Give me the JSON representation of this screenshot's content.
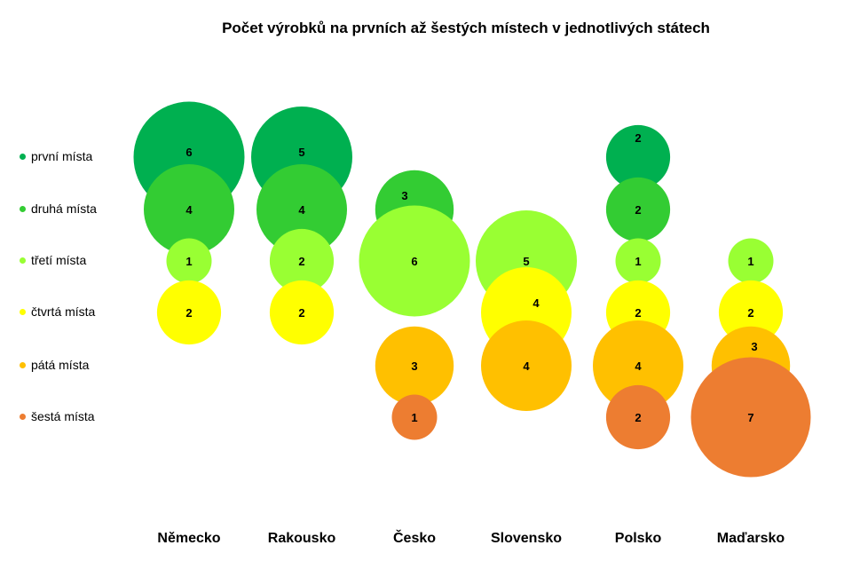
{
  "chart_data": {
    "type": "bubble",
    "title": "Počet výrobků na prvních až šestých místech v jednotlivých státech",
    "categories": [
      "Německo",
      "Rakousko",
      "Česko",
      "Slovensko",
      "Polsko",
      "Maďarsko"
    ],
    "series": [
      {
        "name": "první místa",
        "color": "#00B050",
        "values": [
          6,
          5,
          null,
          null,
          2,
          null
        ]
      },
      {
        "name": "druhá místa",
        "color": "#33CC33",
        "values": [
          4,
          4,
          3,
          null,
          2,
          null
        ]
      },
      {
        "name": "třetí místa",
        "color": "#99FF33",
        "values": [
          1,
          2,
          6,
          5,
          1,
          1
        ]
      },
      {
        "name": "čtvrtá místa",
        "color": "#FFFF00",
        "values": [
          2,
          2,
          null,
          4,
          2,
          2
        ]
      },
      {
        "name": "pátá místa",
        "color": "#FFC000",
        "values": [
          null,
          null,
          3,
          4,
          4,
          3
        ]
      },
      {
        "name": "šestá místa",
        "color": "#ED7D31",
        "values": [
          null,
          null,
          1,
          null,
          2,
          7
        ]
      }
    ],
    "legend": "left"
  }
}
